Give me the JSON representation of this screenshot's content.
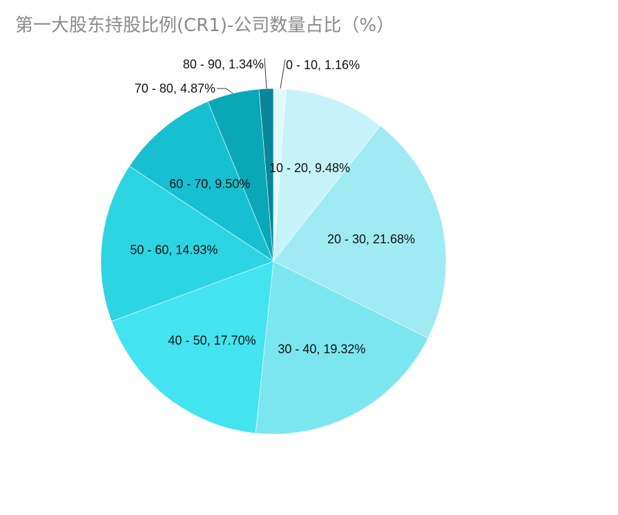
{
  "chart_data": {
    "type": "pie",
    "title": "第一大股东持股比例(CR1)-公司数量占比（%）",
    "start_angle": "top",
    "direction": "clockwise",
    "slices": [
      {
        "category": "0 - 10",
        "value": 1.16,
        "label": "0 - 10, 1.16%",
        "color": "#e2fafd",
        "label_placement": "outside"
      },
      {
        "category": "10 - 20",
        "value": 9.48,
        "label": "10 - 20, 9.48%",
        "color": "#c5f3f9",
        "label_placement": "inside"
      },
      {
        "category": "20 - 30",
        "value": 21.68,
        "label": "20 - 30, 21.68%",
        "color": "#a0ebf3",
        "label_placement": "inside"
      },
      {
        "category": "30 - 40",
        "value": 19.32,
        "label": "30 - 40, 19.32%",
        "color": "#7be6f0",
        "label_placement": "inside"
      },
      {
        "category": "40 - 50",
        "value": 17.7,
        "label": "40 - 50, 17.70%",
        "color": "#43e3ef",
        "label_placement": "inside"
      },
      {
        "category": "50 - 60",
        "value": 14.93,
        "label": "50 - 60, 14.93%",
        "color": "#2dd4e1",
        "label_placement": "inside"
      },
      {
        "category": "60 - 70",
        "value": 9.5,
        "label": "60 - 70, 9.50%",
        "color": "#17c0d0",
        "label_placement": "inside"
      },
      {
        "category": "70 - 80",
        "value": 4.87,
        "label": "70 - 80, 4.87%",
        "color": "#0aa8b6",
        "label_placement": "outside"
      },
      {
        "category": "80 - 90",
        "value": 1.34,
        "label": "80 - 90, 1.34%",
        "color": "#08879a",
        "label_placement": "outside"
      }
    ]
  }
}
